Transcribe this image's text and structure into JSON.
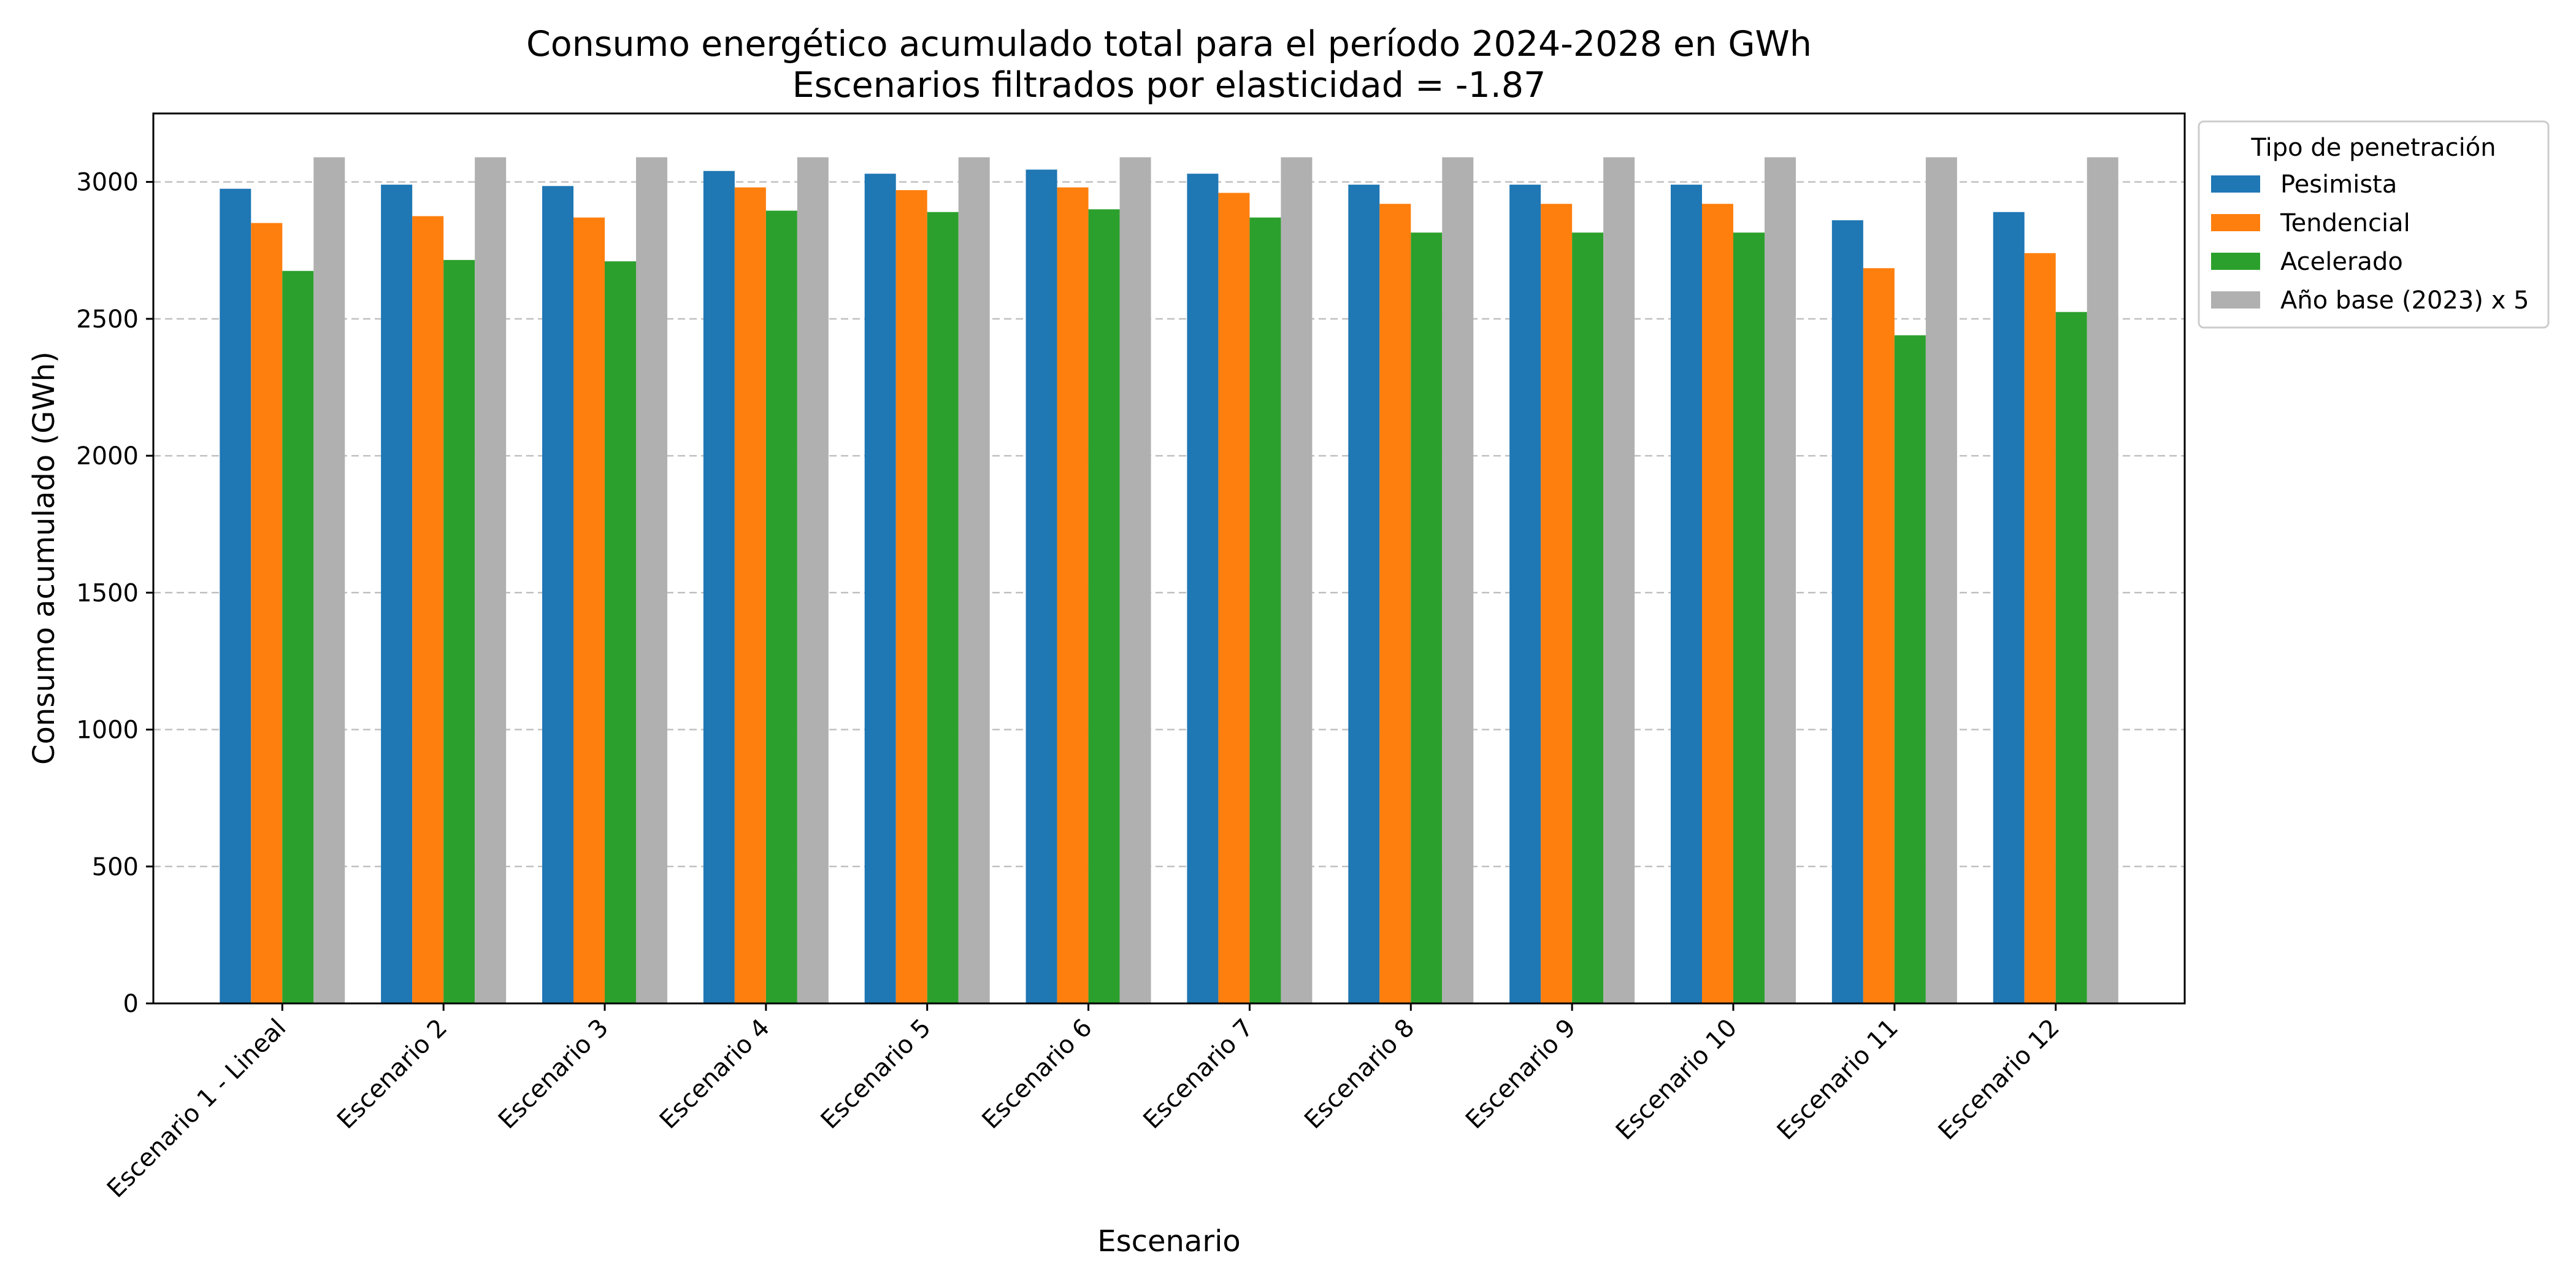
{
  "chart_data": {
    "type": "bar",
    "title": "Consumo energético acumulado total para el período 2024-2028 en GWh",
    "subtitle": "Escenarios filtrados por elasticidad = -1.87",
    "xlabel": "Escenario",
    "ylabel": "Consumo acumulado (GWh)",
    "ylim": [
      0,
      3250
    ],
    "yticks": [
      0,
      500,
      1000,
      1500,
      2000,
      2500,
      3000
    ],
    "grid": true,
    "legend_title": "Tipo de penetración",
    "legend_position": "outside-top-right",
    "categories": [
      "Escenario 1 - Lineal",
      "Escenario 2",
      "Escenario 3",
      "Escenario 4",
      "Escenario 5",
      "Escenario 6",
      "Escenario 7",
      "Escenario 8",
      "Escenario 9",
      "Escenario 10",
      "Escenario 11",
      "Escenario 12"
    ],
    "series": [
      {
        "name": "Pesimista",
        "color": "#1f77b4",
        "values": [
          2975,
          2990,
          2985,
          3040,
          3030,
          3045,
          3030,
          2990,
          2990,
          2990,
          2860,
          2890
        ]
      },
      {
        "name": "Tendencial",
        "color": "#ff7f0e",
        "values": [
          2850,
          2875,
          2870,
          2980,
          2970,
          2980,
          2960,
          2920,
          2920,
          2920,
          2685,
          2740
        ]
      },
      {
        "name": "Acelerado",
        "color": "#2ca02c",
        "values": [
          2675,
          2715,
          2710,
          2895,
          2890,
          2900,
          2870,
          2815,
          2815,
          2815,
          2440,
          2525
        ]
      },
      {
        "name": "Año base (2023) x 5",
        "color": "#b0b0b0",
        "values": [
          3090,
          3090,
          3090,
          3090,
          3090,
          3090,
          3090,
          3090,
          3090,
          3090,
          3090,
          3090
        ]
      }
    ]
  }
}
